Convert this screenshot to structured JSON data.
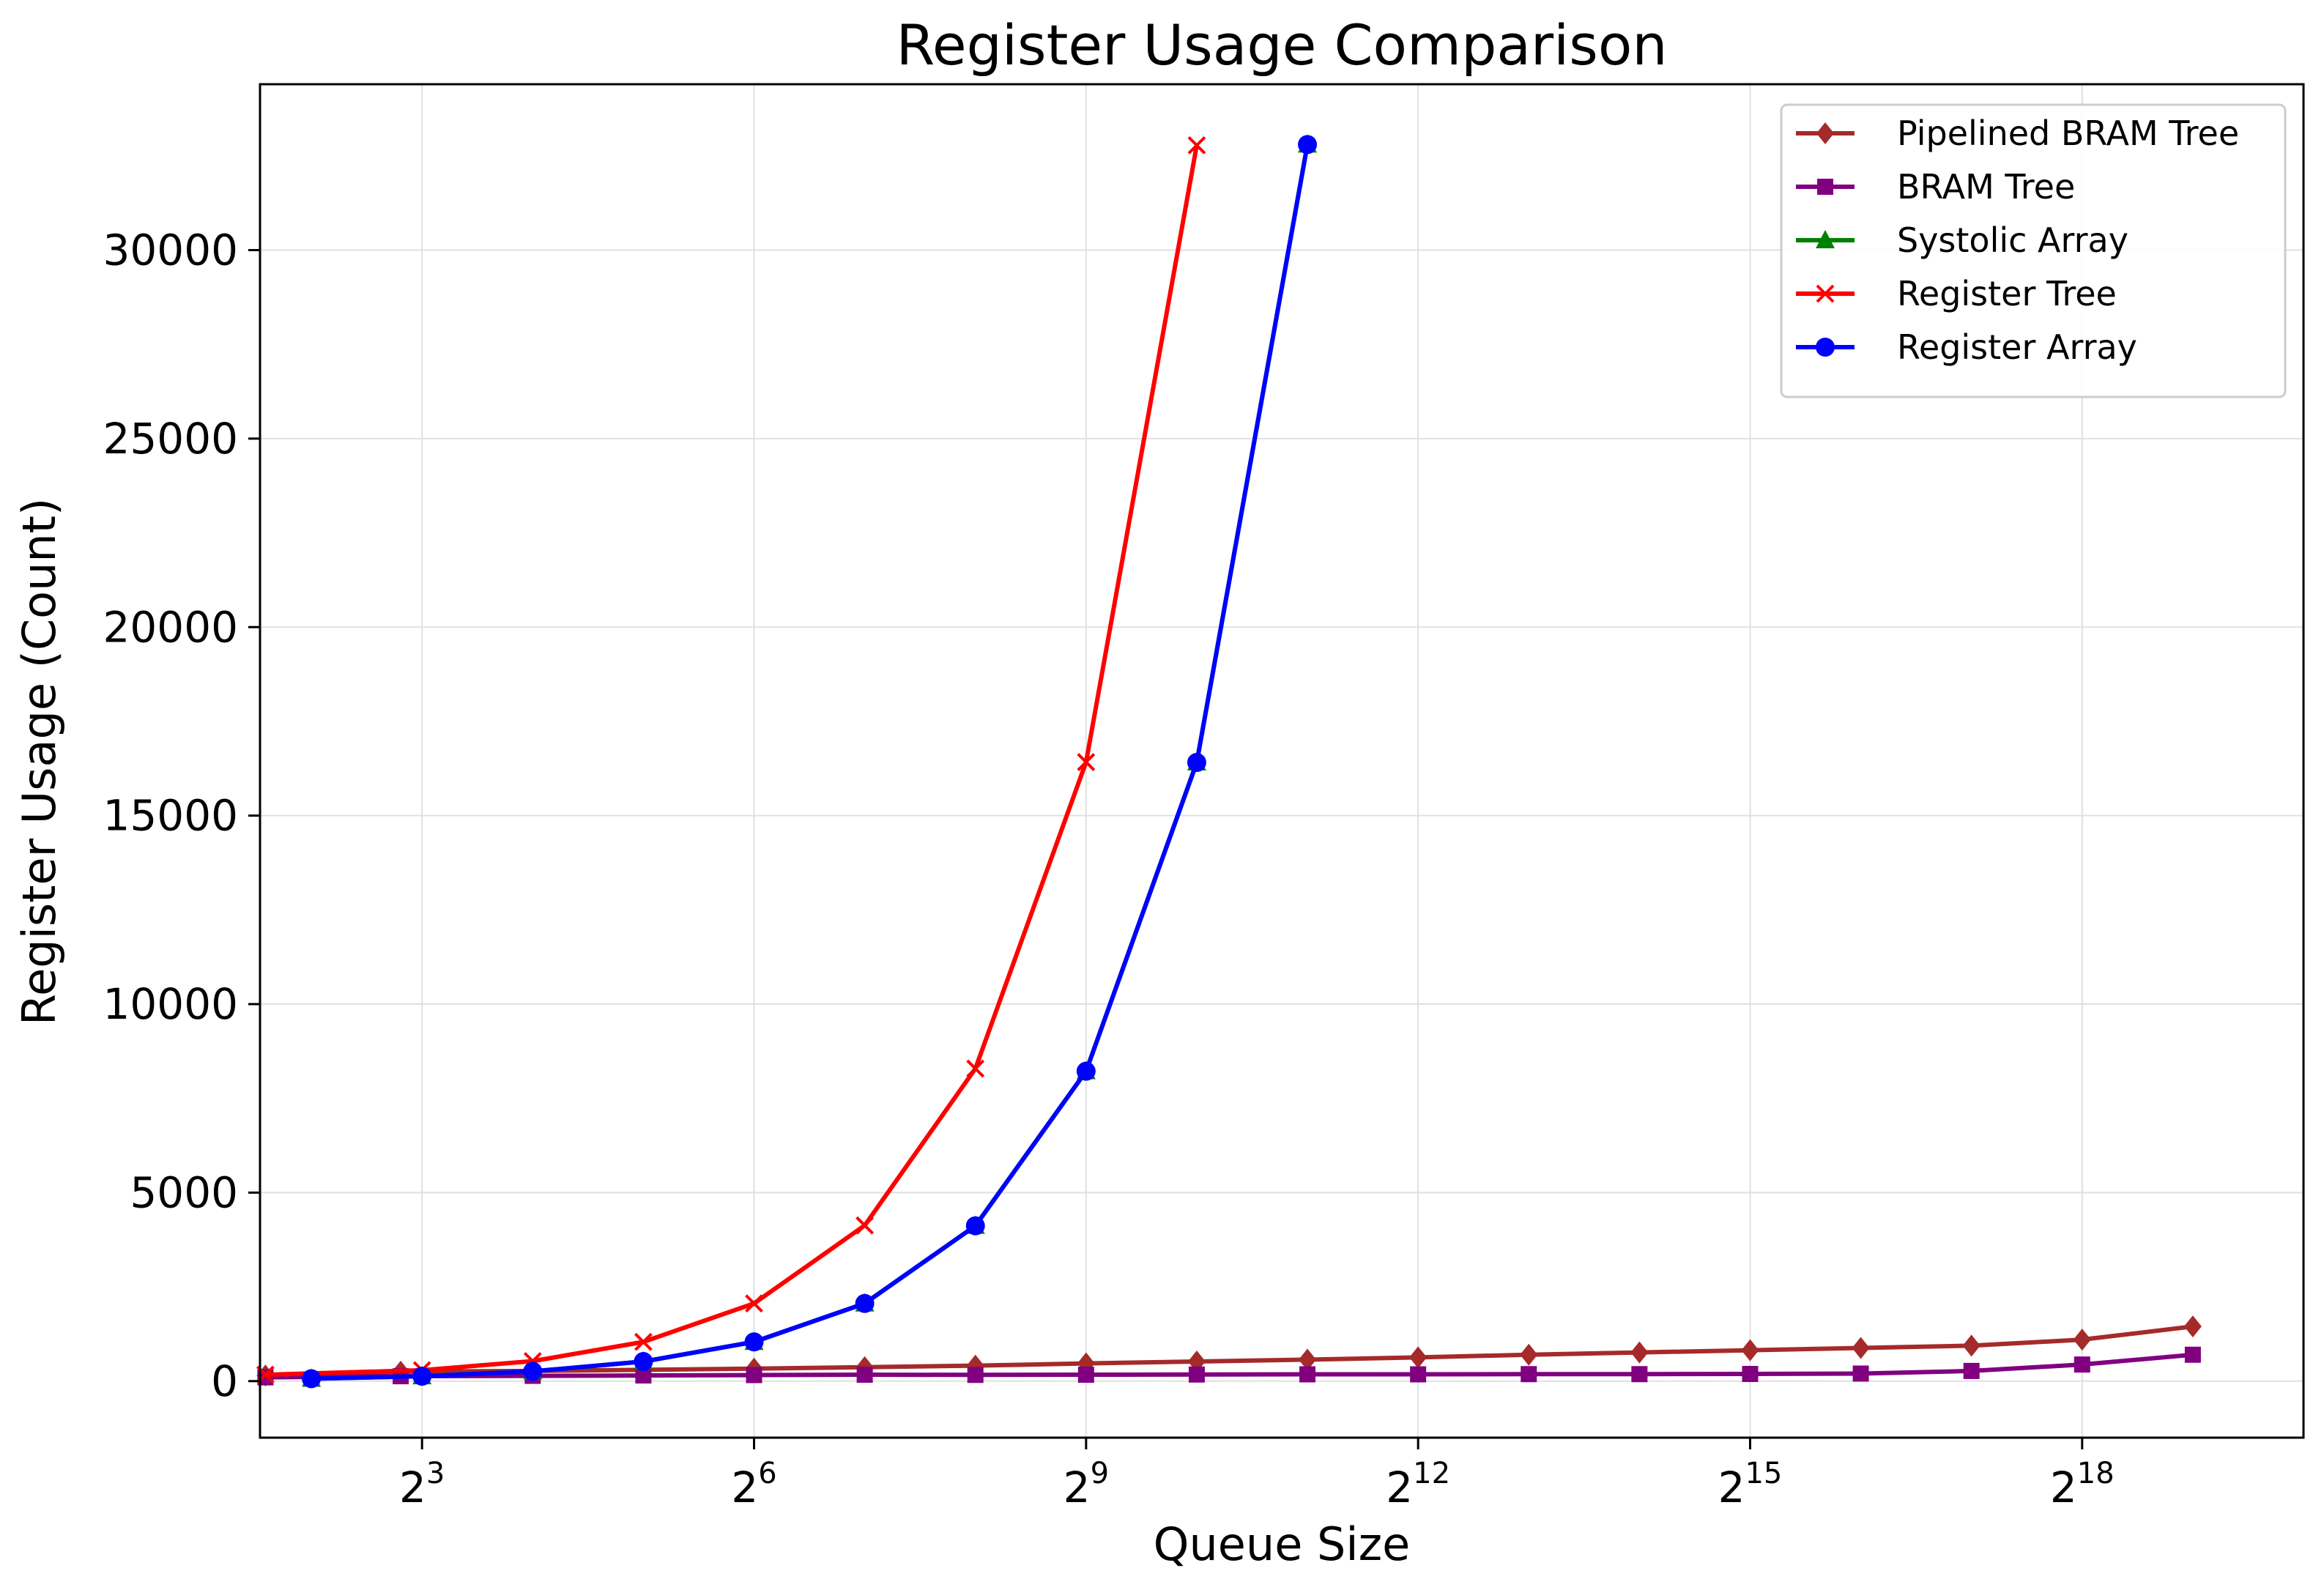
{
  "chart_data": {
    "type": "line",
    "title": "Register Usage Comparison",
    "xlabel": "Queue Size",
    "ylabel": "Register Usage (Count)",
    "x_scale": "log2",
    "x_tick_labels": [
      {
        "base": "2",
        "exp": "3",
        "value": 8
      },
      {
        "base": "2",
        "exp": "6",
        "value": 64
      },
      {
        "base": "2",
        "exp": "9",
        "value": 512
      },
      {
        "base": "2",
        "exp": "12",
        "value": 4096
      },
      {
        "base": "2",
        "exp": "15",
        "value": 32768
      },
      {
        "base": "2",
        "exp": "18",
        "value": 262144
      }
    ],
    "xlim": [
      2.9,
      1048576
    ],
    "ylim": [
      -1500,
      34400
    ],
    "y_ticks": [
      0,
      5000,
      10000,
      15000,
      20000,
      25000,
      30000
    ],
    "y_tick_labels": [
      "0",
      "5000",
      "10000",
      "15000",
      "20000",
      "25000",
      "30000"
    ],
    "grid": true,
    "legend_position": "top-right",
    "series": [
      {
        "name": "Pipelined BRAM Tree",
        "color": "#a52a2a",
        "marker": "diamond",
        "x": [
          3,
          7,
          16,
          32,
          64,
          128,
          256,
          512,
          1024,
          2048,
          4096,
          8192,
          16384,
          32768,
          65536,
          131072,
          262144,
          524288
        ],
        "y": [
          150,
          250,
          270,
          300,
          330,
          370,
          410,
          470,
          520,
          570,
          630,
          700,
          760,
          820,
          880,
          940,
          1100,
          1450
        ]
      },
      {
        "name": "BRAM Tree",
        "color": "#800080",
        "marker": "square",
        "x": [
          3,
          7,
          16,
          32,
          64,
          128,
          256,
          512,
          1024,
          2048,
          4096,
          8192,
          16384,
          32768,
          65536,
          131072,
          262144,
          524288
        ],
        "y": [
          100,
          130,
          140,
          150,
          160,
          170,
          165,
          170,
          175,
          180,
          180,
          185,
          185,
          190,
          200,
          270,
          440,
          700
        ]
      },
      {
        "name": "Systolic Array",
        "color": "#008000",
        "marker": "triangle",
        "x": [
          4,
          8,
          16,
          32,
          64,
          128,
          256,
          512,
          1024,
          2048
        ],
        "y": [
          64,
          130,
          260,
          520,
          1040,
          2060,
          4120,
          8220,
          16410,
          32800
        ]
      },
      {
        "name": "Register Tree",
        "color": "#ff0000",
        "marker": "x",
        "x": [
          3,
          8,
          16,
          32,
          64,
          128,
          256,
          512,
          1024
        ],
        "y": [
          170,
          290,
          530,
          1040,
          2060,
          4130,
          8290,
          16420,
          32780
        ]
      },
      {
        "name": "Register Array",
        "color": "#0000ff",
        "marker": "circle",
        "x": [
          4,
          8,
          16,
          32,
          64,
          128,
          256,
          512,
          1024,
          2048
        ],
        "y": [
          64,
          130,
          260,
          520,
          1040,
          2060,
          4120,
          8220,
          16410,
          32800
        ]
      }
    ]
  }
}
